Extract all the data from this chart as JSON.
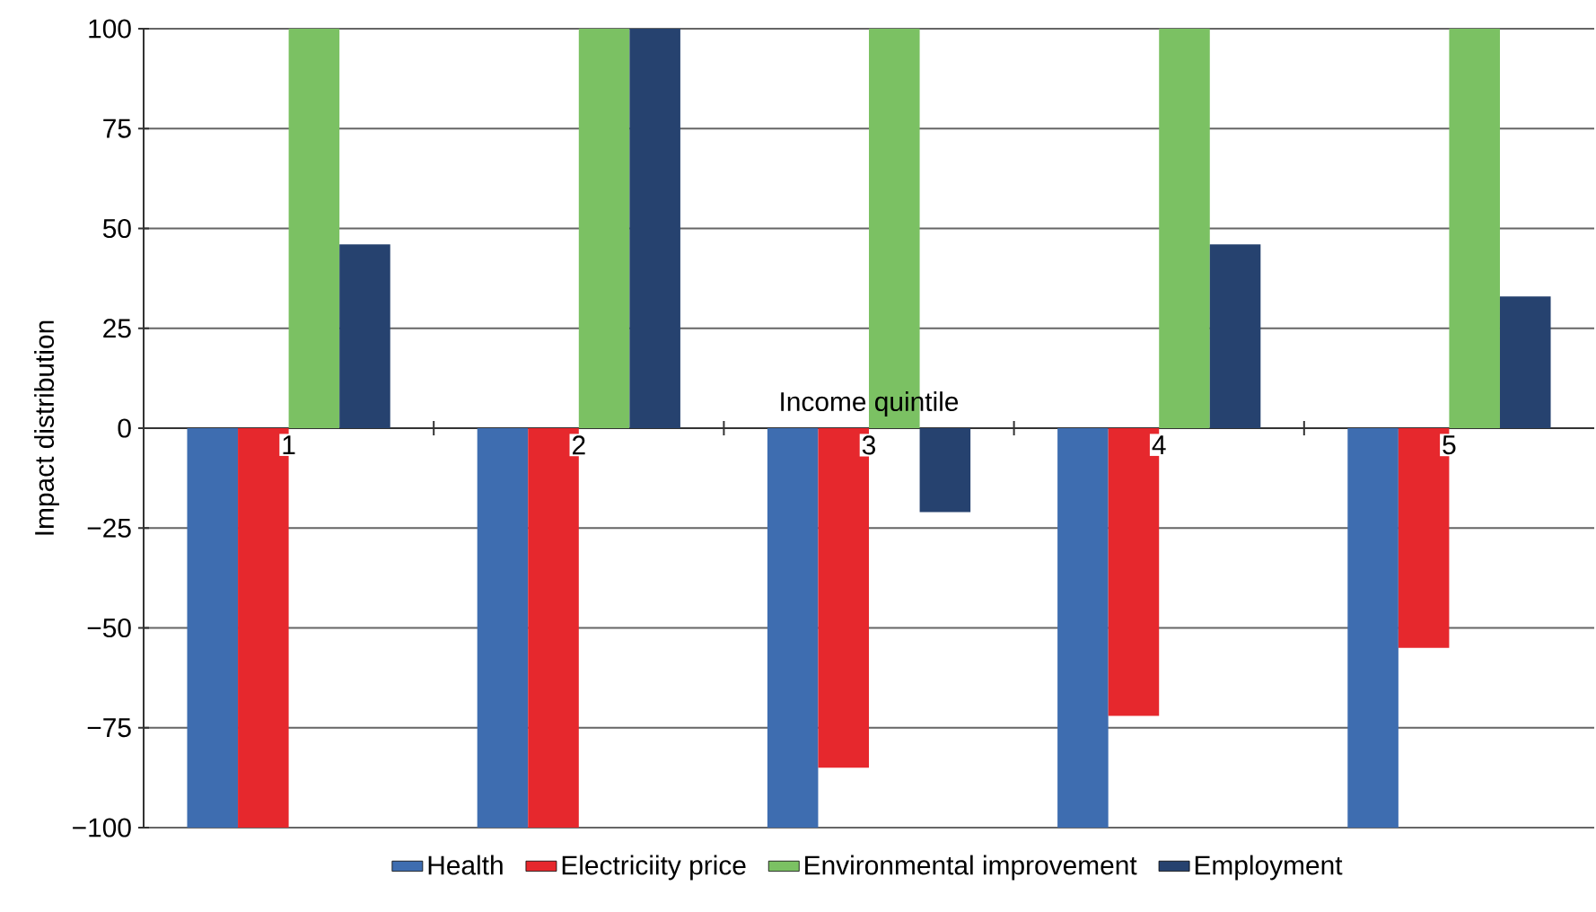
{
  "chart_data": {
    "type": "bar",
    "xlabel": "Income quintile",
    "ylabel": "Impact distribution",
    "categories": [
      "1",
      "2",
      "3",
      "4",
      "5"
    ],
    "series": [
      {
        "name": "Health",
        "color": "#3e6db0",
        "values": [
          -100,
          -100,
          -100,
          -100,
          -100
        ]
      },
      {
        "name": "Electriciity price",
        "color": "#e6282d",
        "values": [
          -100,
          -100,
          -85,
          -72,
          -55
        ]
      },
      {
        "name": "Environmental improvement",
        "color": "#7bc163",
        "values": [
          100,
          100,
          100,
          100,
          100
        ]
      },
      {
        "name": "Employment",
        "color": "#26426f",
        "values": [
          46,
          100,
          -21,
          46,
          33
        ]
      }
    ],
    "ylim": [
      -100,
      100
    ],
    "yticks": [
      {
        "value": -100,
        "label": "−100"
      },
      {
        "value": -75,
        "label": "−75"
      },
      {
        "value": -50,
        "label": "−50"
      },
      {
        "value": -25,
        "label": "−25"
      },
      0,
      25,
      50,
      75,
      100
    ],
    "grid": "y",
    "legend": "bottom"
  }
}
